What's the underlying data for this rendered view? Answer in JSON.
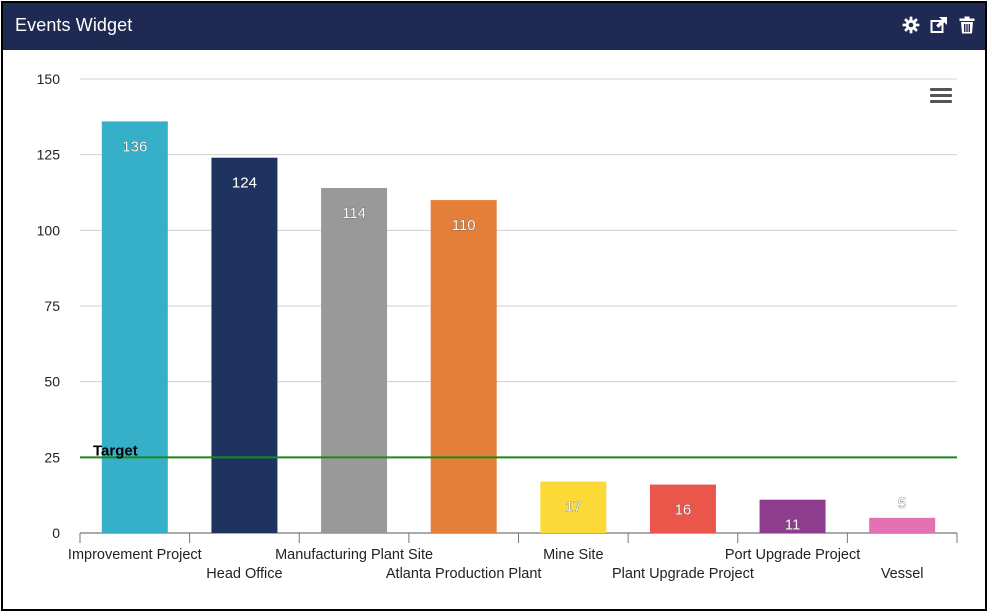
{
  "widget": {
    "title": "Events Widget",
    "icons": [
      "gear-icon",
      "popout-icon",
      "trash-icon"
    ]
  },
  "chart_menu_icon": "hamburger-menu-icon",
  "colors": {
    "titlebar": "#1f2a52",
    "grid": "#d0d0d0",
    "target_line": "#1a8a1a"
  },
  "chart_data": {
    "type": "bar",
    "categories": [
      "Improvement Project",
      "Head Office",
      "Manufacturing Plant Site",
      "Atlanta Production Plant",
      "Mine Site",
      "Plant Upgrade Project",
      "Port Upgrade Project",
      "Vessel"
    ],
    "values": [
      136,
      124,
      114,
      110,
      17,
      16,
      11,
      5
    ],
    "bar_colors": [
      "#36afc8",
      "#1f3360",
      "#999999",
      "#e47f3a",
      "#fbd936",
      "#ea564a",
      "#8e3d8e",
      "#e272b2"
    ],
    "ylim": [
      0,
      150
    ],
    "yticks": [
      0,
      25,
      50,
      75,
      100,
      125,
      150
    ],
    "grid": true,
    "target": {
      "label": "Target",
      "value": 25
    },
    "title": "",
    "xlabel": "",
    "ylabel": ""
  }
}
